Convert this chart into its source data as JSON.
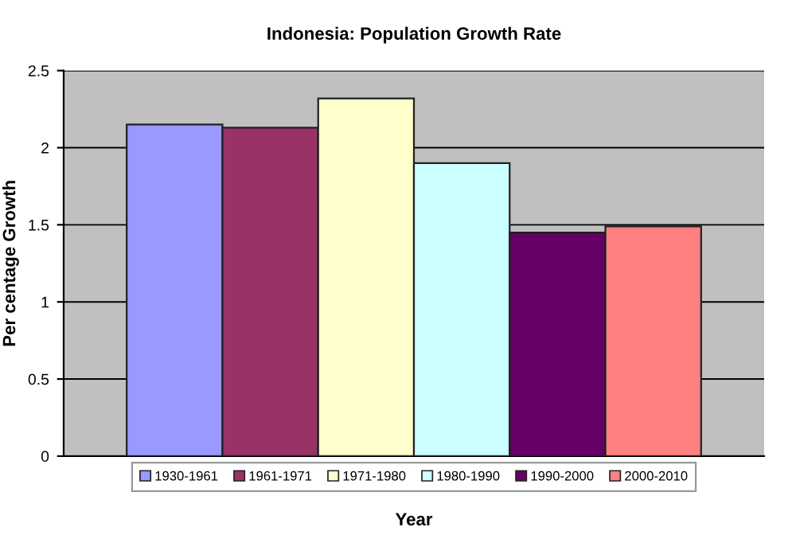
{
  "chart_data": {
    "type": "bar",
    "title": "Indonesia: Population Growth Rate",
    "xlabel": "Year",
    "ylabel": "Per centage Growth",
    "categories": [
      null
    ],
    "series": [
      {
        "name": "1930-1961",
        "color": "#9999ff",
        "values": [
          2.15
        ]
      },
      {
        "name": "1961-1971",
        "color": "#993366",
        "values": [
          2.13
        ]
      },
      {
        "name": "1971-1980",
        "color": "#ffffcc",
        "values": [
          2.32
        ]
      },
      {
        "name": "1980-1990",
        "color": "#ccffff",
        "values": [
          1.9
        ]
      },
      {
        "name": "1990-2000",
        "color": "#660066",
        "values": [
          1.45
        ]
      },
      {
        "name": "2000-2010",
        "color": "#ff8080",
        "values": [
          1.49
        ]
      }
    ],
    "ylim": [
      0,
      2.5
    ],
    "yticks": [
      0,
      0.5,
      1,
      1.5,
      2,
      2.5
    ],
    "grid": "y",
    "legend": "bottom"
  }
}
